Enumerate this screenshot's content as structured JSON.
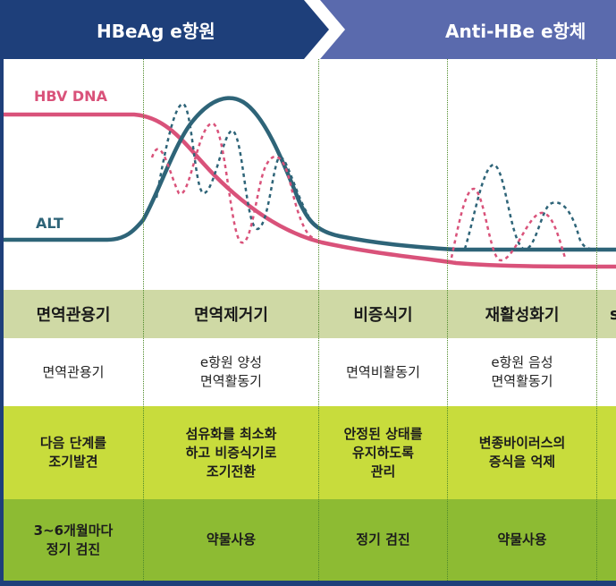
{
  "header": {
    "hbeag_label": "HBeAg  e항원",
    "antihbe_label": "Anti-HBe  e항체",
    "colors": {
      "hbeag_bg": "#1e3f7a",
      "antihbe_bg": "#5a6aad"
    }
  },
  "chart": {
    "hbv_dna_label": "HBV DNA",
    "alt_label": "ALT",
    "colors": {
      "hbv_dna": "#d9527a",
      "alt": "#2e6478"
    }
  },
  "stages": [
    {
      "name": "면역관용기",
      "state": [
        "면역관용기"
      ],
      "goal": [
        "다음 단계를",
        "조기발견"
      ],
      "action": [
        "3~6개월마다",
        "정기 검진"
      ]
    },
    {
      "name": "면역제거기",
      "state": [
        "e항원 양성",
        "면역활동기"
      ],
      "goal": [
        "섬유화를 최소화",
        "하고 비증식기로",
        "조기전환"
      ],
      "action": [
        "약물사용"
      ]
    },
    {
      "name": "비증식기",
      "state": [
        "면역비활동기"
      ],
      "goal": [
        "안정된 상태를",
        "유지하도록",
        "관리"
      ],
      "action": [
        "정기 검진"
      ]
    },
    {
      "name": "재활성화기",
      "state": [
        "e항원 음성",
        "면역활동기"
      ],
      "goal": [
        "변종바이러스의",
        "증식을 억제"
      ],
      "action": [
        "약물사용"
      ]
    },
    {
      "name": "s",
      "state": [],
      "goal": [],
      "action": []
    }
  ],
  "row_colors": {
    "stage_row": "#cfd9a5",
    "goal_row": "#c8dc3c",
    "action_row": "#8dbb33"
  }
}
